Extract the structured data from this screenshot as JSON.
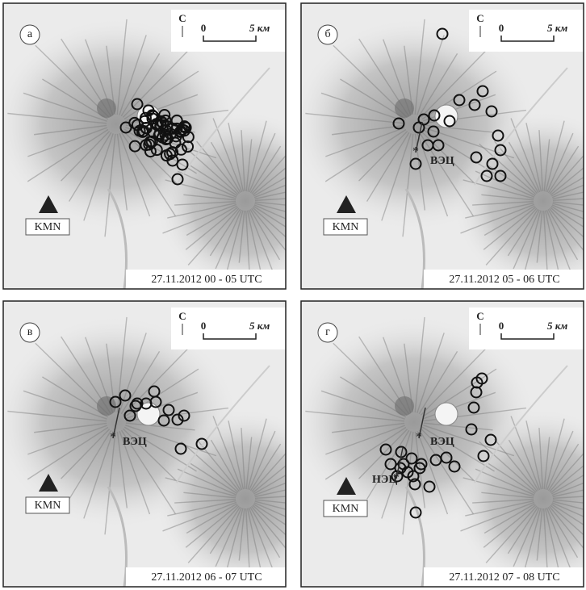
{
  "panels": [
    {
      "letter": "а",
      "north": "С",
      "scale_zero": "0",
      "scale_length": "5 км",
      "station": "KMN",
      "date_label": "27.11.2012  00 - 05  UTC",
      "markers": []
    },
    {
      "letter": "б",
      "north": "С",
      "scale_zero": "0",
      "scale_length": "5 км",
      "station": "KMN",
      "date_label": "27.11.2012  05 - 06  UTC",
      "markers": [
        "ВЭЦ"
      ]
    },
    {
      "letter": "в",
      "north": "С",
      "scale_zero": "0",
      "scale_length": "5 км",
      "station": "KMN",
      "date_label": "27.11.2012  06 - 07  UTC",
      "markers": [
        "ВЭЦ"
      ]
    },
    {
      "letter": "г",
      "north": "С",
      "scale_zero": "0",
      "scale_length": "5 км",
      "station": "KMN",
      "date_label": "27.11.2012  07 - 08  UTC",
      "markers": [
        "ВЭЦ",
        "НЭЦ"
      ]
    }
  ]
}
